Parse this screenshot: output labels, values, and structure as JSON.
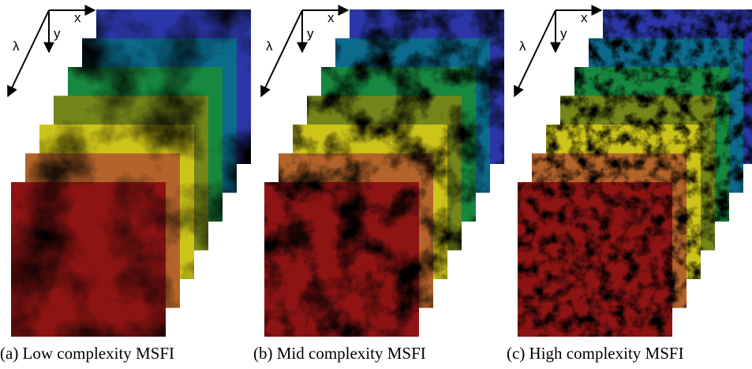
{
  "figure": {
    "panels": [
      {
        "caption": "(a) Low complexity MSFI",
        "axes": {
          "x": "x",
          "y": "y",
          "lambda": "λ"
        }
      },
      {
        "caption": "(b) Mid complexity MSFI",
        "axes": {
          "x": "x",
          "y": "y",
          "lambda": "λ"
        }
      },
      {
        "caption": "(c) High complexity MSFI",
        "axes": {
          "x": "x",
          "y": "y",
          "lambda": "λ"
        }
      }
    ]
  }
}
